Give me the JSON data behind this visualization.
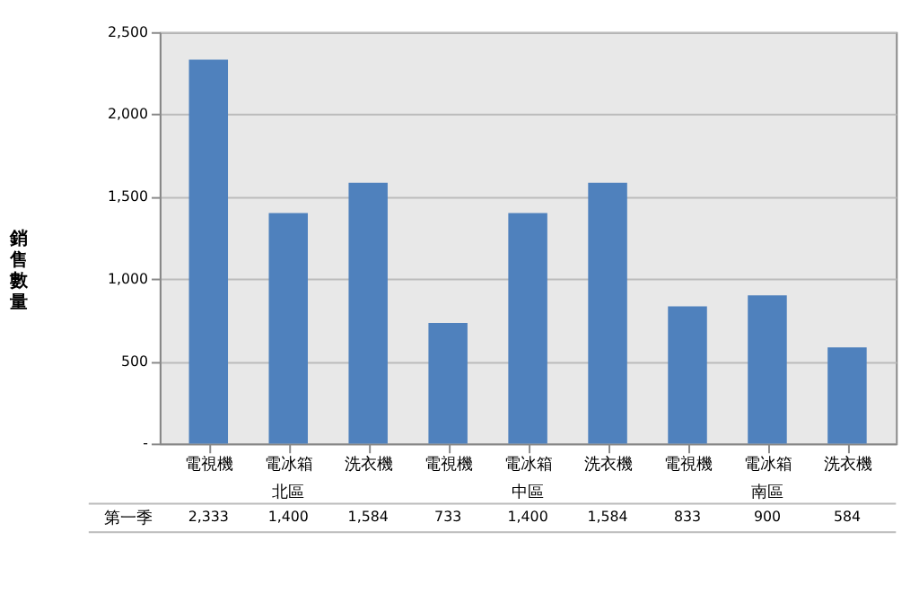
{
  "chart_data": {
    "type": "bar",
    "ylabel": "銷售數量",
    "categories": [
      "電視機",
      "電冰箱",
      "洗衣機",
      "電視機",
      "電冰箱",
      "洗衣機",
      "電視機",
      "電冰箱",
      "洗衣機"
    ],
    "annotations": [
      "北區",
      "中區",
      "南區"
    ],
    "series": [
      {
        "name": "第一季",
        "color": "#4f81bd",
        "values": [
          2333,
          1400,
          1584,
          733,
          1400,
          1584,
          833,
          900,
          584
        ],
        "value_labels": [
          "2,333",
          "1,400",
          "1,584",
          "733",
          "1,400",
          "1,584",
          "833",
          "900",
          "584"
        ]
      }
    ],
    "ylim": [
      0,
      2500
    ],
    "yticks": [
      {
        "value": 0,
        "label": "-"
      },
      500,
      {
        "value": 1000,
        "label": "1,000"
      },
      {
        "value": 1500,
        "label": "1,500"
      },
      {
        "value": 2000,
        "label": "2,000"
      },
      {
        "value": 2500,
        "label": "2,500"
      }
    ],
    "grid": "y"
  }
}
